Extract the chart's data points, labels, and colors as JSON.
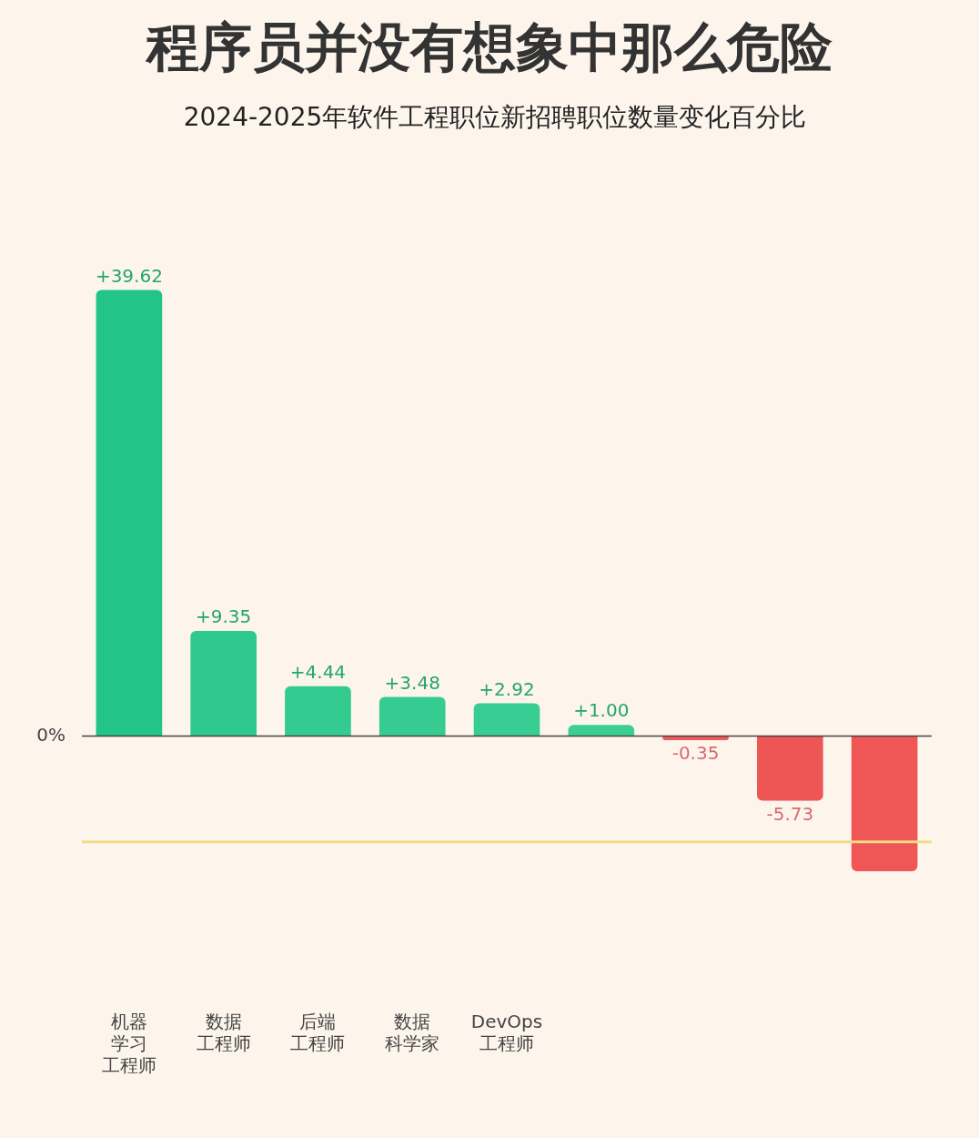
{
  "chart_data": {
    "type": "bar",
    "title": "程序员并没有想象中那么危险",
    "subtitle": "2024-2025年软件工程职位新招聘职位数量变化百分比",
    "categories": [
      "机器学习工程师",
      "数据工程师",
      "后端工程师",
      "数据科学家",
      "DevOps工程师",
      null,
      null,
      null,
      null
    ],
    "values": [
      39.62,
      9.35,
      4.44,
      3.48,
      2.92,
      1.0,
      -0.35,
      -5.73,
      -12
    ],
    "value_labels": [
      "+39.62",
      "+9.35",
      "+4.44",
      "+3.48",
      "+2.92",
      "+1.00",
      "-0.35",
      "-5.73",
      null
    ],
    "colors": [
      "#22c487",
      "#2fc98d",
      "#34cb90",
      "#36cc91",
      "#38cd92",
      "#3ccf94",
      "#ec5a5a",
      "#ee5555",
      "#f05656"
    ],
    "annotations": [
      "0%"
    ],
    "ref_lines": [
      {
        "axis": "y",
        "value": -9.4,
        "label": null,
        "color": "#f2dc86"
      }
    ],
    "grid": false,
    "legend": false
  }
}
